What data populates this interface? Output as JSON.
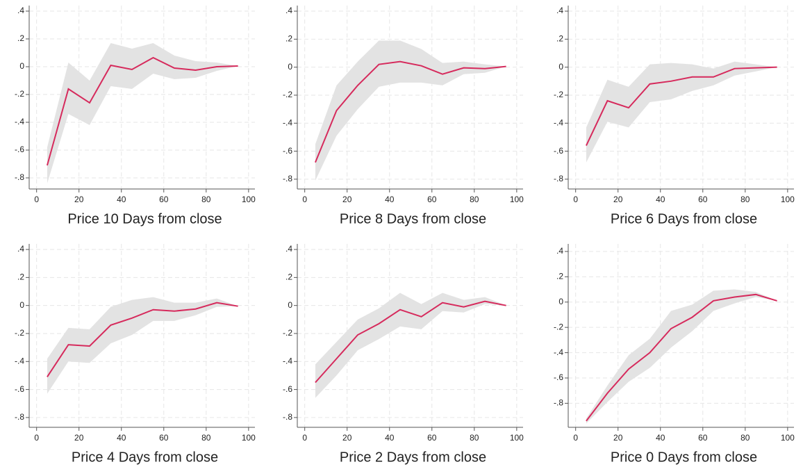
{
  "chart_data": [
    {
      "type": "line",
      "xlabel": "Price 10 Days from close",
      "x": [
        5,
        15,
        25,
        35,
        45,
        55,
        65,
        75,
        85,
        95
      ],
      "values": [
        -0.71,
        -0.16,
        -0.26,
        0.01,
        -0.02,
        0.065,
        -0.01,
        -0.025,
        0.0,
        0.005
      ],
      "upper": [
        -0.58,
        0.03,
        -0.1,
        0.17,
        0.13,
        0.17,
        0.08,
        0.04,
        0.03,
        0.005
      ],
      "lower": [
        -0.84,
        -0.34,
        -0.42,
        -0.14,
        -0.16,
        -0.05,
        -0.09,
        -0.08,
        -0.03,
        0.005
      ],
      "color": "#d62a5c",
      "band_color": "#e3e3e3",
      "xlim": [
        -3.5,
        103
      ],
      "ylim": [
        -0.88,
        0.44
      ],
      "xticks": [
        0,
        20,
        40,
        60,
        80,
        100
      ],
      "yticks": [
        {
          "value": 0.4,
          "label": ".4"
        },
        {
          "value": 0.2,
          "label": ".2"
        },
        0,
        {
          "value": -0.2,
          "label": "-.2"
        },
        {
          "value": -0.4,
          "label": "-.4"
        },
        {
          "value": -0.6,
          "label": "-.6"
        },
        {
          "value": -0.8,
          "label": "-.8"
        }
      ],
      "grid": true
    },
    {
      "type": "line",
      "xlabel": "Price 8 Days from close",
      "x": [
        5,
        15,
        25,
        35,
        45,
        55,
        65,
        75,
        85,
        95
      ],
      "values": [
        -0.68,
        -0.31,
        -0.13,
        0.02,
        0.04,
        0.01,
        -0.05,
        -0.005,
        -0.01,
        0.005
      ],
      "upper": [
        -0.55,
        -0.13,
        0.04,
        0.19,
        0.19,
        0.13,
        0.03,
        0.04,
        0.02,
        0.005
      ],
      "lower": [
        -0.81,
        -0.49,
        -0.3,
        -0.14,
        -0.11,
        -0.11,
        -0.13,
        -0.05,
        -0.04,
        0.005
      ],
      "color": "#d62a5c",
      "band_color": "#e3e3e3",
      "xlim": [
        -3.5,
        103
      ],
      "ylim": [
        -0.87,
        0.44
      ],
      "xticks": [
        0,
        20,
        40,
        60,
        80,
        100
      ],
      "yticks": [
        {
          "value": 0.4,
          "label": ".4"
        },
        {
          "value": 0.2,
          "label": ".2"
        },
        0,
        {
          "value": -0.2,
          "label": "-.2"
        },
        {
          "value": -0.4,
          "label": "-.4"
        },
        {
          "value": -0.6,
          "label": "-.6"
        },
        {
          "value": -0.8,
          "label": "-.8"
        }
      ],
      "grid": true
    },
    {
      "type": "line",
      "xlabel": "Price 6 Days from close",
      "x": [
        5,
        15,
        25,
        35,
        45,
        55,
        65,
        75,
        85,
        95
      ],
      "values": [
        -0.56,
        -0.24,
        -0.29,
        -0.12,
        -0.1,
        -0.07,
        -0.07,
        -0.01,
        -0.005,
        0.0
      ],
      "upper": [
        -0.43,
        -0.09,
        -0.14,
        0.02,
        0.03,
        0.02,
        -0.01,
        0.04,
        0.02,
        0.0
      ],
      "lower": [
        -0.68,
        -0.39,
        -0.43,
        -0.25,
        -0.23,
        -0.17,
        -0.13,
        -0.06,
        -0.03,
        0.0
      ],
      "color": "#d62a5c",
      "band_color": "#e3e3e3",
      "xlim": [
        -3.5,
        103
      ],
      "ylim": [
        -0.87,
        0.44
      ],
      "xticks": [
        0,
        20,
        40,
        60,
        80,
        100
      ],
      "yticks": [
        {
          "value": 0.4,
          "label": ".4"
        },
        {
          "value": 0.2,
          "label": ".2"
        },
        0,
        {
          "value": -0.2,
          "label": "-.2"
        },
        {
          "value": -0.4,
          "label": "-.4"
        },
        {
          "value": -0.6,
          "label": "-.6"
        },
        {
          "value": -0.8,
          "label": "-.8"
        }
      ],
      "grid": true
    },
    {
      "type": "line",
      "xlabel": "Price 4 Days from close",
      "x": [
        5,
        15,
        25,
        35,
        45,
        55,
        65,
        75,
        85,
        95
      ],
      "values": [
        -0.51,
        -0.28,
        -0.29,
        -0.14,
        -0.09,
        -0.03,
        -0.04,
        -0.025,
        0.02,
        -0.005
      ],
      "upper": [
        -0.38,
        -0.16,
        -0.17,
        -0.01,
        0.04,
        0.06,
        0.02,
        0.02,
        0.05,
        -0.005
      ],
      "lower": [
        -0.63,
        -0.4,
        -0.41,
        -0.27,
        -0.21,
        -0.11,
        -0.11,
        -0.07,
        -0.01,
        -0.005
      ],
      "color": "#d62a5c",
      "band_color": "#e3e3e3",
      "xlim": [
        -3.5,
        103
      ],
      "ylim": [
        -0.87,
        0.44
      ],
      "xticks": [
        0,
        20,
        40,
        60,
        80,
        100
      ],
      "yticks": [
        {
          "value": 0.4,
          "label": ".4"
        },
        {
          "value": 0.2,
          "label": ".2"
        },
        0,
        {
          "value": -0.2,
          "label": "-.2"
        },
        {
          "value": -0.4,
          "label": "-.4"
        },
        {
          "value": -0.6,
          "label": "-.6"
        },
        {
          "value": -0.8,
          "label": "-.8"
        }
      ],
      "grid": true
    },
    {
      "type": "line",
      "xlabel": "Price 2 Days from close",
      "x": [
        5,
        15,
        25,
        35,
        45,
        55,
        65,
        75,
        85,
        95
      ],
      "values": [
        -0.55,
        -0.38,
        -0.21,
        -0.13,
        -0.03,
        -0.08,
        0.02,
        -0.01,
        0.03,
        0.0
      ],
      "upper": [
        -0.42,
        -0.26,
        -0.1,
        -0.02,
        0.09,
        0.01,
        0.09,
        0.04,
        0.06,
        0.0
      ],
      "lower": [
        -0.66,
        -0.5,
        -0.32,
        -0.24,
        -0.15,
        -0.17,
        -0.04,
        -0.05,
        0.01,
        0.0
      ],
      "color": "#d62a5c",
      "band_color": "#e3e3e3",
      "xlim": [
        -3.5,
        103
      ],
      "ylim": [
        -0.87,
        0.44
      ],
      "xticks": [
        0,
        20,
        40,
        60,
        80,
        100
      ],
      "yticks": [
        {
          "value": 0.4,
          "label": ".4"
        },
        {
          "value": 0.2,
          "label": ".2"
        },
        0,
        {
          "value": -0.2,
          "label": "-.2"
        },
        {
          "value": -0.4,
          "label": "-.4"
        },
        {
          "value": -0.6,
          "label": "-.6"
        },
        {
          "value": -0.8,
          "label": "-.8"
        }
      ],
      "grid": true
    },
    {
      "type": "line",
      "xlabel": "Price 0 Days from close",
      "x": [
        5,
        15,
        25,
        35,
        45,
        55,
        65,
        75,
        85,
        95
      ],
      "values": [
        -0.94,
        -0.72,
        -0.53,
        -0.4,
        -0.21,
        -0.12,
        0.01,
        0.04,
        0.06,
        0.01
      ],
      "upper": [
        -0.92,
        -0.66,
        -0.42,
        -0.29,
        -0.07,
        -0.02,
        0.09,
        0.1,
        0.08,
        0.01
      ],
      "lower": [
        -0.96,
        -0.79,
        -0.63,
        -0.52,
        -0.36,
        -0.23,
        -0.07,
        -0.01,
        0.04,
        0.01
      ],
      "color": "#d62a5c",
      "band_color": "#e3e3e3",
      "xlim": [
        -3.5,
        103
      ],
      "ylim": [
        -0.99,
        0.46
      ],
      "xticks": [
        0,
        20,
        40,
        60,
        80,
        100
      ],
      "yticks": [
        {
          "value": 0.4,
          "label": ".4"
        },
        {
          "value": 0.2,
          "label": ".2"
        },
        0,
        {
          "value": -0.2,
          "label": "-.2"
        },
        {
          "value": -0.4,
          "label": "-.4"
        },
        {
          "value": -0.6,
          "label": "-.6"
        },
        {
          "value": -0.8,
          "label": "-.8"
        }
      ],
      "grid": true
    }
  ]
}
